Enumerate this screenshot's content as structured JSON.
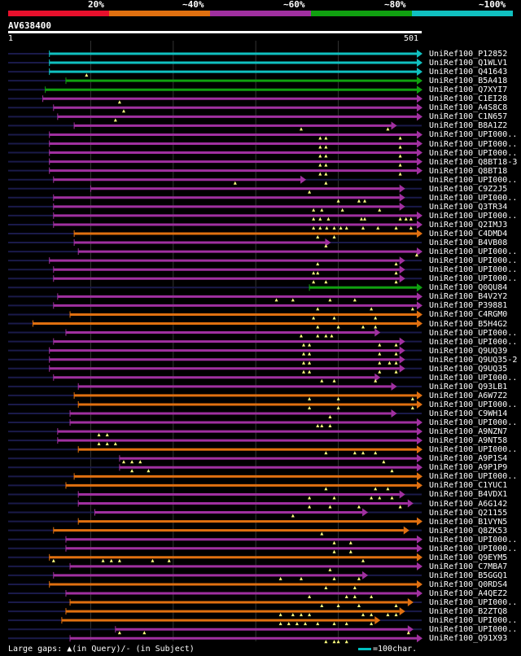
{
  "legend": {
    "segments": [
      {
        "label": "20%",
        "color": "#e8102c"
      },
      {
        "label": "~40%",
        "color": "#e07010"
      },
      {
        "label": "~60%",
        "color": "#a030a0"
      },
      {
        "label": "~80%",
        "color": "#10a010"
      },
      {
        "label": "~100%",
        "color": "#10c0c0"
      }
    ]
  },
  "query": {
    "name": "AV638400",
    "start": "1",
    "end": "501"
  },
  "colors": {
    "cyan": "#10c0c0",
    "green": "#10a010",
    "purple": "#a030a0",
    "orange": "#e07010",
    "dim": "#1a1a4a",
    "marker": "#ffff80"
  },
  "chart_data": {
    "type": "alignment",
    "query_length": 501,
    "hits": [
      {
        "label": "UniRef100_P12852",
        "color": "cyan",
        "start": 50,
        "end": 501,
        "extra": true
      },
      {
        "label": "UniRef100_Q1WLV1",
        "color": "cyan",
        "start": 50,
        "end": 501
      },
      {
        "label": "UniRef100_Q41643",
        "color": "cyan",
        "start": 50,
        "end": 501,
        "gaps": [
          95
        ]
      },
      {
        "label": "UniRef100_B5A418",
        "color": "green",
        "start": 70,
        "end": 501
      },
      {
        "label": "UniRef100_Q7XYI7",
        "color": "green",
        "start": 45,
        "end": 501
      },
      {
        "label": "UniRef100_C1EI28",
        "color": "purple",
        "start": 42,
        "end": 501,
        "gaps": [
          135
        ]
      },
      {
        "label": "UniRef100_A4S8C8",
        "color": "purple",
        "start": 55,
        "end": 501,
        "gaps": [
          140
        ]
      },
      {
        "label": "UniRef100_C1N657",
        "color": "purple",
        "start": 60,
        "end": 501,
        "gaps": [
          130
        ]
      },
      {
        "label": "UniRef100_B8A1Z2",
        "color": "purple",
        "start": 80,
        "end": 470,
        "gaps": [
          355,
          460
        ]
      },
      {
        "label": "UniRef100_UPI000..",
        "color": "purple",
        "start": 50,
        "end": 501,
        "gaps": [
          378,
          385,
          475
        ]
      },
      {
        "label": "UniRef100_UPI000..",
        "color": "purple",
        "start": 50,
        "end": 501,
        "gaps": [
          378,
          385,
          475
        ]
      },
      {
        "label": "UniRef100_UPI000..",
        "color": "purple",
        "start": 50,
        "end": 501,
        "gaps": [
          378,
          385,
          475
        ]
      },
      {
        "label": "UniRef100_Q8BT18-3",
        "color": "purple",
        "start": 50,
        "end": 501,
        "gaps": [
          378,
          385,
          475
        ]
      },
      {
        "label": "UniRef100_Q8BT18",
        "color": "purple",
        "start": 50,
        "end": 501,
        "gaps": [
          378,
          385,
          475
        ]
      },
      {
        "label": "UniRef100_UPI000..",
        "color": "purple",
        "start": 55,
        "end": 360,
        "gaps": [
          275,
          385
        ]
      },
      {
        "label": "UniRef100_C9Z2J5",
        "color": "purple",
        "start": 100,
        "end": 480,
        "gaps": [
          365
        ]
      },
      {
        "label": "UniRef100_UPI000..",
        "color": "purple",
        "start": 55,
        "end": 480,
        "gaps": [
          400,
          425,
          432
        ]
      },
      {
        "label": "UniRef100_Q3TR34",
        "color": "purple",
        "start": 55,
        "end": 480,
        "gaps": [
          370,
          380,
          405,
          450
        ]
      },
      {
        "label": "UniRef100_UPI000..",
        "color": "purple",
        "start": 55,
        "end": 501,
        "gaps": [
          370,
          378,
          388,
          428,
          432,
          475,
          482,
          488
        ]
      },
      {
        "label": "UniRef100_Q2IMJ3",
        "color": "purple",
        "start": 55,
        "end": 501,
        "gaps": [
          370,
          378,
          386,
          395,
          403,
          410,
          430,
          448,
          470,
          488
        ]
      },
      {
        "label": "UniRef100_C4DMD4",
        "color": "orange",
        "start": 80,
        "end": 501,
        "gaps": [
          375,
          395
        ]
      },
      {
        "label": "UniRef100_B4VB08",
        "color": "purple",
        "start": 80,
        "end": 390,
        "gaps": [
          385
        ]
      },
      {
        "label": "UniRef100_UPI000..",
        "color": "purple",
        "start": 85,
        "end": 501,
        "gaps": [
          495
        ]
      },
      {
        "label": "UniRef100_UPI000..",
        "color": "purple",
        "start": 50,
        "end": 480,
        "gaps": [
          375,
          470
        ]
      },
      {
        "label": "UniRef100_UPI000..",
        "color": "purple",
        "start": 55,
        "end": 480,
        "gaps": [
          370,
          375,
          470
        ]
      },
      {
        "label": "UniRef100_UPI000..",
        "color": "purple",
        "start": 55,
        "end": 480,
        "gaps": [
          370,
          385,
          470
        ]
      },
      {
        "label": "UniRef100_Q0QU84",
        "color": "green",
        "start": 365,
        "end": 501
      },
      {
        "label": "UniRef100_B4V2Y2",
        "color": "purple",
        "start": 60,
        "end": 501,
        "gaps": [
          325,
          345,
          390,
          420
        ]
      },
      {
        "label": "UniRef100_P39881",
        "color": "purple",
        "start": 55,
        "end": 501,
        "gaps": [
          375,
          440,
          490
        ]
      },
      {
        "label": "UniRef100_C4RGM0",
        "color": "orange",
        "start": 75,
        "end": 501,
        "gaps": [
          370,
          395,
          445
        ]
      },
      {
        "label": "UniRef100_B5H4G2",
        "color": "orange",
        "start": 30,
        "end": 501,
        "gaps": [
          375,
          400,
          430,
          445
        ]
      },
      {
        "label": "UniRef100_UPI000..",
        "color": "purple",
        "start": 70,
        "end": 450,
        "gaps": [
          355,
          375,
          385,
          392
        ]
      },
      {
        "label": "UniRef100_UPI000..",
        "color": "purple",
        "start": 55,
        "end": 480,
        "gaps": [
          358,
          365,
          450,
          470
        ]
      },
      {
        "label": "UniRef100_Q9UQ39",
        "color": "purple",
        "start": 50,
        "end": 480,
        "gaps": [
          358,
          365,
          450,
          470
        ]
      },
      {
        "label": "UniRef100_Q9UQ35-2",
        "color": "purple",
        "start": 50,
        "end": 480,
        "gaps": [
          358,
          365,
          450,
          462,
          470
        ]
      },
      {
        "label": "UniRef100_Q9UQ35",
        "color": "purple",
        "start": 50,
        "end": 480,
        "gaps": [
          358,
          365,
          450,
          470
        ]
      },
      {
        "label": "UniRef100_UPI000..",
        "color": "purple",
        "start": 55,
        "end": 450,
        "gaps": [
          380,
          395,
          445
        ]
      },
      {
        "label": "UniRef100_Q93LB1",
        "color": "purple",
        "start": 85,
        "end": 470
      },
      {
        "label": "UniRef100_A6W7Z2",
        "color": "orange",
        "start": 80,
        "end": 501,
        "gaps": [
          365,
          400,
          490
        ]
      },
      {
        "label": "UniRef100_UPI000..",
        "color": "orange",
        "start": 85,
        "end": 501,
        "gaps": [
          365,
          400,
          490
        ]
      },
      {
        "label": "UniRef100_C9WH14",
        "color": "purple",
        "start": 75,
        "end": 470,
        "gaps": [
          390
        ]
      },
      {
        "label": "UniRef100_UPI000..",
        "color": "purple",
        "start": 75,
        "end": 501,
        "gaps": [
          375,
          380,
          390
        ]
      },
      {
        "label": "UniRef100_A9NZN7",
        "color": "purple",
        "start": 60,
        "end": 501,
        "gaps": [
          110,
          120
        ]
      },
      {
        "label": "UniRef100_A9NT58",
        "color": "purple",
        "start": 60,
        "end": 501,
        "gaps": [
          110,
          120,
          130
        ]
      },
      {
        "label": "UniRef100_UPI000..",
        "color": "orange",
        "start": 85,
        "end": 501,
        "gaps": [
          385,
          420,
          430,
          445
        ]
      },
      {
        "label": "UniRef100_A9P1S4",
        "color": "purple",
        "start": 135,
        "end": 501,
        "gaps": [
          140,
          150,
          160,
          455
        ]
      },
      {
        "label": "UniRef100_A9P1P9",
        "color": "purple",
        "start": 135,
        "end": 501,
        "gaps": [
          150,
          170,
          465
        ]
      },
      {
        "label": "UniRef100_UPI000..",
        "color": "orange",
        "start": 80,
        "end": 501
      },
      {
        "label": "UniRef100_C1YUC1",
        "color": "orange",
        "start": 70,
        "end": 501,
        "gaps": [
          385,
          445,
          460
        ]
      },
      {
        "label": "UniRef100_B4VDX1",
        "color": "purple",
        "start": 85,
        "end": 480,
        "gaps": [
          365,
          395,
          440,
          450,
          465
        ]
      },
      {
        "label": "UniRef100_A6G142",
        "color": "purple",
        "start": 85,
        "end": 490,
        "gaps": [
          365,
          390,
          425,
          475
        ]
      },
      {
        "label": "UniRef100_Q21155",
        "color": "purple",
        "start": 105,
        "end": 435,
        "gaps": [
          345
        ]
      },
      {
        "label": "UniRef100_B1VYN5",
        "color": "orange",
        "start": 85,
        "end": 501
      },
      {
        "label": "UniRef100_Q8ZK53",
        "color": "orange",
        "start": 55,
        "end": 485,
        "gaps": [
          380
        ]
      },
      {
        "label": "UniRef100_UPI000..",
        "color": "purple",
        "start": 70,
        "end": 501,
        "gaps": [
          395,
          415
        ]
      },
      {
        "label": "UniRef100_UPI000..",
        "color": "purple",
        "start": 70,
        "end": 501,
        "gaps": [
          395,
          415
        ]
      },
      {
        "label": "UniRef100_Q9EYM5",
        "color": "orange",
        "start": 50,
        "end": 501,
        "gaps": [
          55,
          115,
          125,
          135,
          175,
          195,
          430
        ]
      },
      {
        "label": "UniRef100_C7MBA7",
        "color": "purple",
        "start": 75,
        "end": 501,
        "gaps": [
          390
        ]
      },
      {
        "label": "UniRef100_B5GGQ1",
        "color": "purple",
        "start": 55,
        "end": 435,
        "gaps": [
          330,
          355,
          395,
          425
        ]
      },
      {
        "label": "UniRef100_Q0RDS4",
        "color": "orange",
        "start": 50,
        "end": 501,
        "gaps": [
          385,
          420
        ]
      },
      {
        "label": "UniRef100_A4QEZ2",
        "color": "purple",
        "start": 70,
        "end": 501,
        "gaps": [
          365,
          410,
          420,
          440
        ]
      },
      {
        "label": "UniRef100_UPI000..",
        "color": "orange",
        "start": 75,
        "end": 490,
        "gaps": [
          380,
          400,
          425,
          470
        ]
      },
      {
        "label": "UniRef100_B2ZTQ8",
        "color": "orange",
        "start": 70,
        "end": 480,
        "gaps": [
          330,
          345,
          355,
          365,
          430,
          440,
          460,
          470
        ]
      },
      {
        "label": "UniRef100_UPI000..",
        "color": "orange",
        "start": 65,
        "end": 450,
        "gaps": [
          330,
          340,
          350,
          360,
          375,
          395,
          410,
          440
        ]
      },
      {
        "label": "UniRef100_UPI000..",
        "color": "purple",
        "start": 130,
        "end": 490,
        "gaps": [
          135,
          165,
          485
        ]
      },
      {
        "label": "UniRef100_Q91X93",
        "color": "purple",
        "start": 75,
        "end": 501,
        "gaps": [
          385,
          395,
          400,
          410
        ]
      }
    ]
  },
  "footer": {
    "text": "Large gaps: ▲(in Query)/- (in Subject)",
    "scale": "=100char."
  }
}
